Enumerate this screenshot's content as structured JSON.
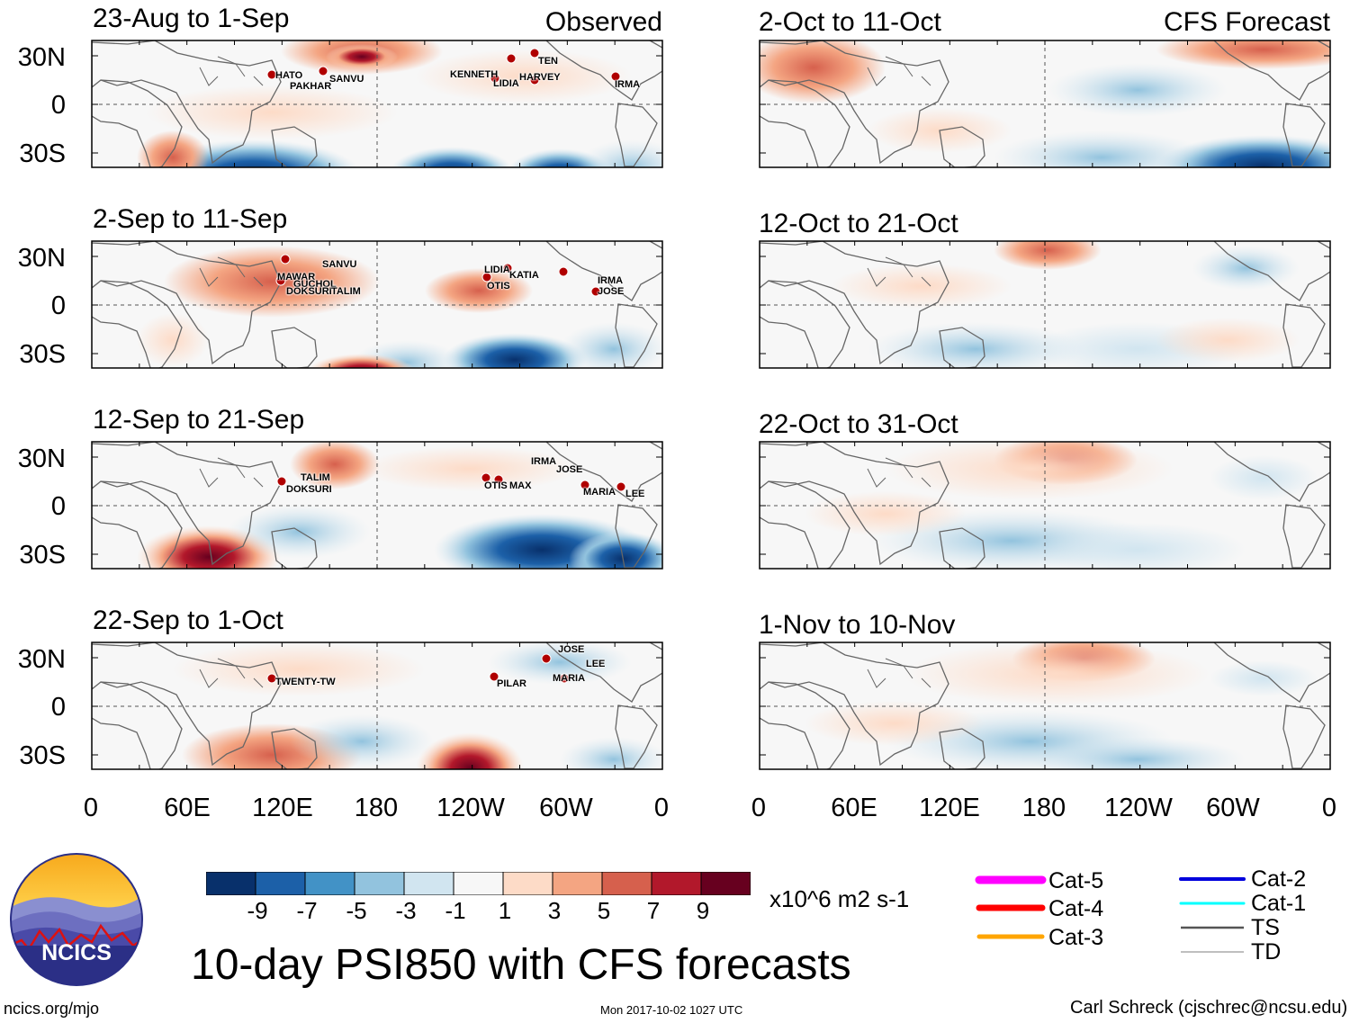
{
  "figure_title": "10-day PSI850 with CFS forecasts",
  "observed_label": "Observed",
  "forecast_label": "CFS Forecast",
  "latitude_labels": [
    "30N",
    "0",
    "30S"
  ],
  "longitude_labels": [
    "0",
    "60E",
    "120E",
    "180",
    "120W",
    "60W",
    "0"
  ],
  "panels_left": [
    {
      "period": "23-Aug to 1-Sep",
      "storms": [
        "HATO",
        "PAKHAR",
        "SANVU",
        "KENNETH",
        "LIDIA",
        "HARVEY",
        "TEN",
        "IRMA"
      ]
    },
    {
      "period": "2-Sep to 11-Sep",
      "storms": [
        "SANVU",
        "MAWAR",
        "GUCHOL",
        "DOKSURI",
        "TALIM",
        "LIDIA",
        "OTIS",
        "KATIA",
        "IRMA",
        "JOSE"
      ]
    },
    {
      "period": "12-Sep to 21-Sep",
      "storms": [
        "TALIM",
        "DOKSURI",
        "OTIS",
        "MAX",
        "IRMA",
        "JOSE",
        "MARIA",
        "LEE"
      ]
    },
    {
      "period": "22-Sep to 1-Oct",
      "storms": [
        "TWENTY-TW",
        "PILAR",
        "JOSE",
        "LEE",
        "MARIA"
      ]
    }
  ],
  "panels_right": [
    {
      "period": "2-Oct to 11-Oct"
    },
    {
      "period": "12-Oct to 21-Oct"
    },
    {
      "period": "22-Oct to 31-Oct"
    },
    {
      "period": "1-Nov to 10-Nov"
    }
  ],
  "colorbar": {
    "labels": [
      "-9",
      "-7",
      "-5",
      "-3",
      "-1",
      "1",
      "3",
      "5",
      "7",
      "9"
    ],
    "colors": [
      "#08306b",
      "#1c60a8",
      "#4292c6",
      "#92c3de",
      "#d1e5f0",
      "#f7f7f7",
      "#fddbc7",
      "#f4a582",
      "#d6604d",
      "#b2182b",
      "#67001f"
    ],
    "units": "x10^6 m2 s-1"
  },
  "legend": [
    {
      "label": "Cat-5",
      "color": "#ff00ff"
    },
    {
      "label": "Cat-4",
      "color": "#ff0000"
    },
    {
      "label": "Cat-3",
      "color": "#ffa500"
    },
    {
      "label": "Cat-2",
      "color": "#0000dd"
    },
    {
      "label": "Cat-1",
      "color": "#00ffff"
    },
    {
      "label": "TS",
      "color": "#555555"
    },
    {
      "label": "TD",
      "color": "#aaaaaa"
    }
  ],
  "logo_text": "NCICS",
  "footer_left": "ncics.org/mjo",
  "footer_center": "Mon 2017-10-02 1027 UTC",
  "footer_right": "Carl Schreck (cjschrec@ncsu.edu)"
}
